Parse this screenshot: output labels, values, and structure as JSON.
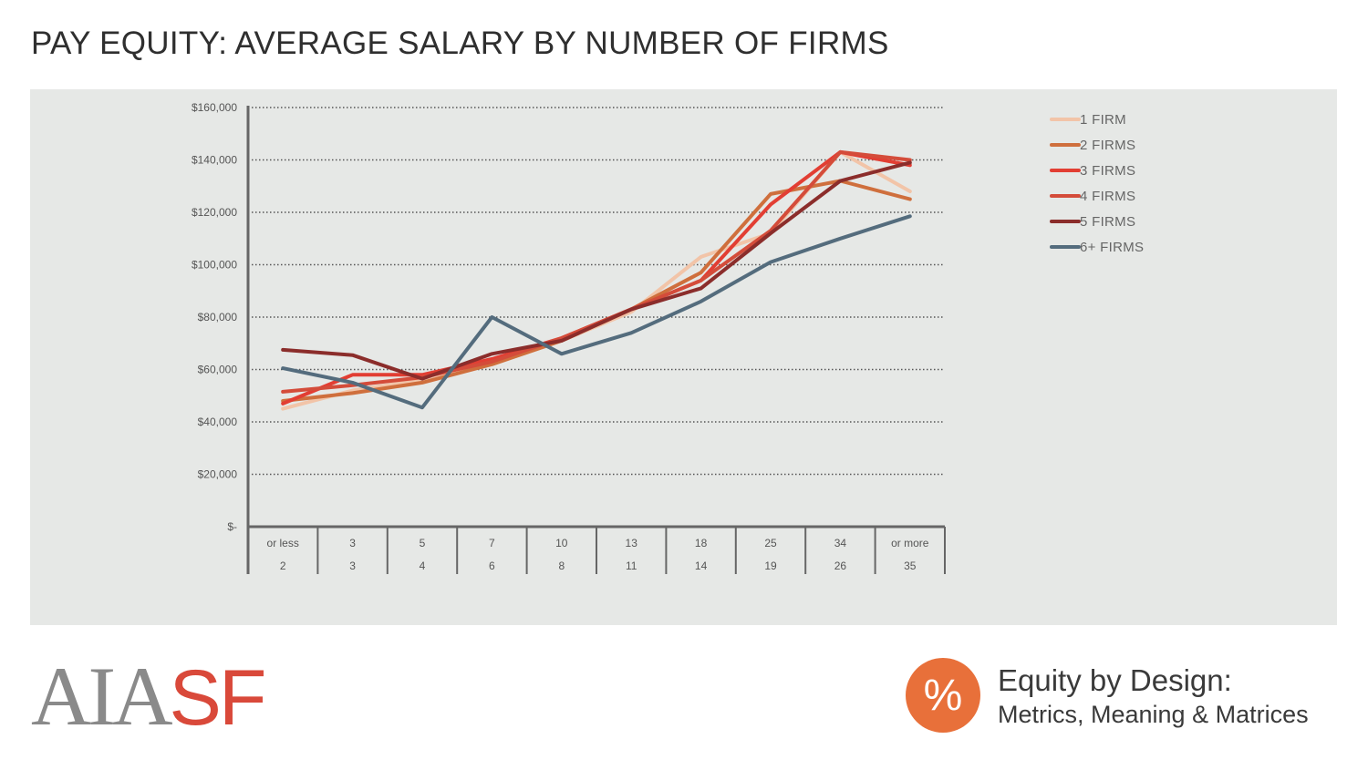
{
  "header": {
    "title": "PAY EQUITY: AVERAGE SALARY BY NUMBER OF FIRMS"
  },
  "chart_data": {
    "type": "line",
    "title": "",
    "xlabel": "",
    "ylabel": "",
    "ylim": [
      0,
      160000
    ],
    "y_ticks": [
      0,
      20000,
      40000,
      60000,
      80000,
      100000,
      120000,
      140000,
      160000
    ],
    "y_tick_labels": [
      "$-",
      "$20,000",
      "$40,000",
      "$60,000",
      "$80,000",
      "$100,000",
      "$120,000",
      "$140,000",
      "$160,000"
    ],
    "categories": [
      {
        "top": "or less",
        "bottom": "2"
      },
      {
        "top": "3",
        "bottom": "3"
      },
      {
        "top": "5",
        "bottom": "4"
      },
      {
        "top": "7",
        "bottom": "6"
      },
      {
        "top": "10",
        "bottom": "8"
      },
      {
        "top": "13",
        "bottom": "11"
      },
      {
        "top": "18",
        "bottom": "14"
      },
      {
        "top": "25",
        "bottom": "19"
      },
      {
        "top": "34",
        "bottom": "26"
      },
      {
        "top": "or more",
        "bottom": "35"
      }
    ],
    "grid": true,
    "legend_position": "top-right",
    "series": [
      {
        "name": "1 FIRM",
        "color": "#f2c4a8",
        "values": [
          45000,
          52000,
          56000,
          62000,
          71000,
          82000,
          103000,
          112000,
          143000,
          128000
        ]
      },
      {
        "name": "2 FIRMS",
        "color": "#cf6f3d",
        "values": [
          48000,
          51000,
          55000,
          62000,
          71000,
          83000,
          97000,
          127000,
          132000,
          125000
        ]
      },
      {
        "name": "3 FIRMS",
        "color": "#e23e33",
        "values": [
          47000,
          58000,
          58000,
          64000,
          72000,
          83000,
          94000,
          123000,
          143000,
          138000
        ]
      },
      {
        "name": "4 FIRMS",
        "color": "#d44c3a",
        "values": [
          51500,
          54000,
          57000,
          63000,
          72000,
          83000,
          94000,
          113000,
          143000,
          140000
        ]
      },
      {
        "name": "5 FIRMS",
        "color": "#8b2d2b",
        "values": [
          67500,
          65500,
          56500,
          66000,
          71000,
          83000,
          91000,
          112000,
          132000,
          139000
        ]
      },
      {
        "name": "6+ FIRMS",
        "color": "#546c7d",
        "values": [
          60500,
          55000,
          45500,
          80000,
          66000,
          74000,
          86000,
          101000,
          110000,
          118500
        ]
      }
    ]
  },
  "footer": {
    "logo_left": "AIA",
    "logo_right": "SF",
    "badge_symbol": "%",
    "brand_title": "Equity by Design:",
    "brand_subtitle": "Metrics, Meaning & Matrices"
  }
}
